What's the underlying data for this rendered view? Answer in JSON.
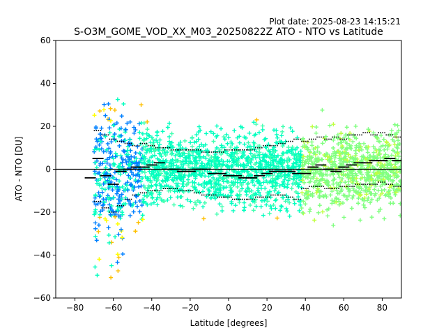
{
  "plot_date": "Plot date: 2025-08-23 14:15:21",
  "chart_data": {
    "type": "scatter",
    "title": "S-O3M_GOME_VOD_XX_M03_20250822Z ATO - NTO vs Latitude",
    "xlabel": "Latitude [degrees]",
    "ylabel": "ATO - NTO [DU]",
    "xlim": [
      -90,
      90
    ],
    "ylim": [
      -60,
      60
    ],
    "xticks": [
      -80,
      -60,
      -40,
      -20,
      0,
      20,
      40,
      60,
      80
    ],
    "xtick_labels": [
      "−80",
      "−60",
      "−40",
      "−20",
      "0",
      "20",
      "40",
      "60",
      "80"
    ],
    "yticks": [
      -60,
      -40,
      -20,
      0,
      20,
      40,
      60
    ],
    "ytick_labels": [
      "−60",
      "−40",
      "−20",
      "0",
      "20",
      "40",
      "60"
    ],
    "grid": false,
    "zero_line": 0,
    "marker": "+",
    "colors": [
      "#0000ff",
      "#0080ff",
      "#00bfff",
      "#00ffbf",
      "#40ffb0",
      "#80ff80",
      "#c0ff40",
      "#ffff00",
      "#ffc000"
    ],
    "bin_means": [
      {
        "x": -72,
        "y": -4
      },
      {
        "x": -68,
        "y": 5
      },
      {
        "x": -64,
        "y": -3
      },
      {
        "x": -60,
        "y": -7
      },
      {
        "x": -56,
        "y": -1
      },
      {
        "x": -52,
        "y": 0
      },
      {
        "x": -48,
        "y": 1
      },
      {
        "x": -44,
        "y": 1
      },
      {
        "x": -40,
        "y": 2
      },
      {
        "x": -36,
        "y": 3
      },
      {
        "x": -32,
        "y": 0
      },
      {
        "x": -28,
        "y": 0
      },
      {
        "x": -24,
        "y": -1
      },
      {
        "x": -20,
        "y": -1
      },
      {
        "x": -16,
        "y": 0
      },
      {
        "x": -12,
        "y": 0
      },
      {
        "x": -8,
        "y": -2
      },
      {
        "x": -4,
        "y": -2
      },
      {
        "x": 0,
        "y": -3
      },
      {
        "x": 4,
        "y": -3
      },
      {
        "x": 8,
        "y": -4
      },
      {
        "x": 12,
        "y": -4
      },
      {
        "x": 16,
        "y": -3
      },
      {
        "x": 20,
        "y": -2
      },
      {
        "x": 24,
        "y": -1
      },
      {
        "x": 28,
        "y": -1
      },
      {
        "x": 32,
        "y": -1
      },
      {
        "x": 36,
        "y": -2
      },
      {
        "x": 40,
        "y": -2
      },
      {
        "x": 44,
        "y": 1
      },
      {
        "x": 48,
        "y": 2
      },
      {
        "x": 52,
        "y": 0
      },
      {
        "x": 56,
        "y": -1
      },
      {
        "x": 60,
        "y": 1
      },
      {
        "x": 64,
        "y": 2
      },
      {
        "x": 68,
        "y": 3
      },
      {
        "x": 72,
        "y": 3
      },
      {
        "x": 76,
        "y": 4
      },
      {
        "x": 80,
        "y": 4
      },
      {
        "x": 84,
        "y": 5
      },
      {
        "x": 88,
        "y": 4
      }
    ],
    "bin_upper": [
      {
        "x": -68,
        "y": 18
      },
      {
        "x": -64,
        "y": 16
      },
      {
        "x": -60,
        "y": 14
      },
      {
        "x": -56,
        "y": 13
      },
      {
        "x": -52,
        "y": 12
      },
      {
        "x": -48,
        "y": 11
      },
      {
        "x": -44,
        "y": 12
      },
      {
        "x": -40,
        "y": 11
      },
      {
        "x": -36,
        "y": 10
      },
      {
        "x": -32,
        "y": 10
      },
      {
        "x": -28,
        "y": 9
      },
      {
        "x": -24,
        "y": 9
      },
      {
        "x": -20,
        "y": 9
      },
      {
        "x": -16,
        "y": 9
      },
      {
        "x": -12,
        "y": 8
      },
      {
        "x": -8,
        "y": 8
      },
      {
        "x": -4,
        "y": 8
      },
      {
        "x": 0,
        "y": 9
      },
      {
        "x": 4,
        "y": 9
      },
      {
        "x": 8,
        "y": 9
      },
      {
        "x": 12,
        "y": 9
      },
      {
        "x": 16,
        "y": 10
      },
      {
        "x": 20,
        "y": 11
      },
      {
        "x": 24,
        "y": 11
      },
      {
        "x": 28,
        "y": 12
      },
      {
        "x": 32,
        "y": 13
      },
      {
        "x": 36,
        "y": 14
      },
      {
        "x": 40,
        "y": 13
      },
      {
        "x": 44,
        "y": 14
      },
      {
        "x": 48,
        "y": 15
      },
      {
        "x": 52,
        "y": 14
      },
      {
        "x": 56,
        "y": 15
      },
      {
        "x": 60,
        "y": 14
      },
      {
        "x": 64,
        "y": 16
      },
      {
        "x": 68,
        "y": 16
      },
      {
        "x": 72,
        "y": 17
      },
      {
        "x": 76,
        "y": 16
      },
      {
        "x": 80,
        "y": 17
      },
      {
        "x": 84,
        "y": 16
      },
      {
        "x": 88,
        "y": 15
      }
    ],
    "bin_lower": [
      {
        "x": -68,
        "y": -15
      },
      {
        "x": -64,
        "y": -18
      },
      {
        "x": -60,
        "y": -20
      },
      {
        "x": -56,
        "y": -17
      },
      {
        "x": -52,
        "y": -14
      },
      {
        "x": -48,
        "y": -12
      },
      {
        "x": -44,
        "y": -11
      },
      {
        "x": -40,
        "y": -10
      },
      {
        "x": -36,
        "y": -10
      },
      {
        "x": -32,
        "y": -9
      },
      {
        "x": -28,
        "y": -9
      },
      {
        "x": -24,
        "y": -10
      },
      {
        "x": -20,
        "y": -10
      },
      {
        "x": -16,
        "y": -11
      },
      {
        "x": -12,
        "y": -12
      },
      {
        "x": -8,
        "y": -12
      },
      {
        "x": -4,
        "y": -13
      },
      {
        "x": 0,
        "y": -13
      },
      {
        "x": 4,
        "y": -14
      },
      {
        "x": 8,
        "y": -14
      },
      {
        "x": 12,
        "y": -14
      },
      {
        "x": 16,
        "y": -13
      },
      {
        "x": 20,
        "y": -13
      },
      {
        "x": 24,
        "y": -12
      },
      {
        "x": 28,
        "y": -12
      },
      {
        "x": 32,
        "y": -13
      },
      {
        "x": 36,
        "y": -14
      },
      {
        "x": 40,
        "y": -9
      },
      {
        "x": 44,
        "y": -8
      },
      {
        "x": 48,
        "y": -8
      },
      {
        "x": 52,
        "y": -9
      },
      {
        "x": 56,
        "y": -9
      },
      {
        "x": 60,
        "y": -8
      },
      {
        "x": 64,
        "y": -8
      },
      {
        "x": 68,
        "y": -7
      },
      {
        "x": 72,
        "y": -7
      },
      {
        "x": 76,
        "y": -7
      },
      {
        "x": 80,
        "y": -6
      },
      {
        "x": 84,
        "y": -7
      },
      {
        "x": 88,
        "y": -8
      }
    ]
  }
}
